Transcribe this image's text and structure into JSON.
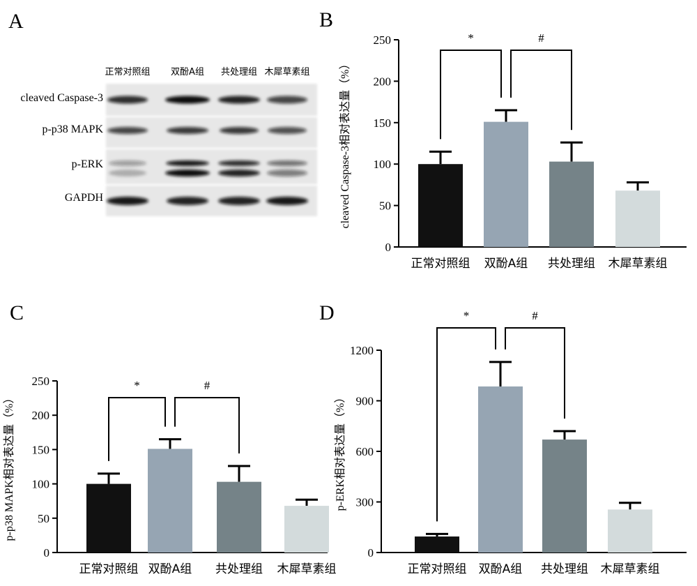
{
  "panels": {
    "a": {
      "letter": "A"
    },
    "b": {
      "letter": "B"
    },
    "c": {
      "letter": "C"
    },
    "d": {
      "letter": "D"
    }
  },
  "blot": {
    "lanes": [
      "正常对照组",
      "双酚A组",
      "共处理组",
      "木犀草素组"
    ],
    "proteins": [
      "cleaved Caspase-3",
      "p-p38 MAPK",
      "p-ERK",
      "GAPDH"
    ]
  },
  "chart_data": [
    {
      "panel": "B",
      "type": "bar",
      "categories": [
        "正常对照组",
        "双酚A组",
        "共处理组",
        "木犀草素组"
      ],
      "values": [
        100,
        151,
        103,
        68
      ],
      "errors": [
        15,
        14,
        23,
        10
      ],
      "colors": [
        "#111111",
        "#96a5b3",
        "#758388",
        "#d3dbdc"
      ],
      "ylabel": "cleaved Caspase-3相对表达量（%）",
      "ylim": [
        0,
        250
      ],
      "yticks": [
        0,
        50,
        100,
        150,
        200,
        250
      ],
      "significance": [
        {
          "from": 0,
          "to": 1,
          "label": "*"
        },
        {
          "from": 1,
          "to": 2,
          "label": "#"
        }
      ]
    },
    {
      "panel": "C",
      "type": "bar",
      "categories": [
        "正常对照组",
        "双酚A组",
        "共处理组",
        "木犀草素组"
      ],
      "values": [
        100,
        151,
        103,
        68
      ],
      "errors": [
        15,
        14,
        23,
        9
      ],
      "colors": [
        "#111111",
        "#96a5b3",
        "#758388",
        "#d3dbdc"
      ],
      "ylabel": "p-p38 MAPK相对表达量（%）",
      "ylim": [
        0,
        250
      ],
      "yticks": [
        0,
        50,
        100,
        150,
        200,
        250
      ],
      "significance": [
        {
          "from": 0,
          "to": 1,
          "label": "*"
        },
        {
          "from": 1,
          "to": 2,
          "label": "#"
        }
      ]
    },
    {
      "panel": "D",
      "type": "bar",
      "categories": [
        "正常对照组",
        "双酚A组",
        "共处理组",
        "木犀草素组"
      ],
      "values": [
        95,
        985,
        670,
        255
      ],
      "errors": [
        15,
        145,
        50,
        40
      ],
      "colors": [
        "#111111",
        "#96a5b3",
        "#758388",
        "#d3dbdc"
      ],
      "ylabel": "p-ERK相对表达量（%）",
      "ylim": [
        0,
        1200
      ],
      "yticks": [
        0,
        300,
        600,
        900,
        1200
      ],
      "significance": [
        {
          "from": 0,
          "to": 1,
          "label": "*"
        },
        {
          "from": 1,
          "to": 2,
          "label": "#"
        }
      ]
    }
  ]
}
